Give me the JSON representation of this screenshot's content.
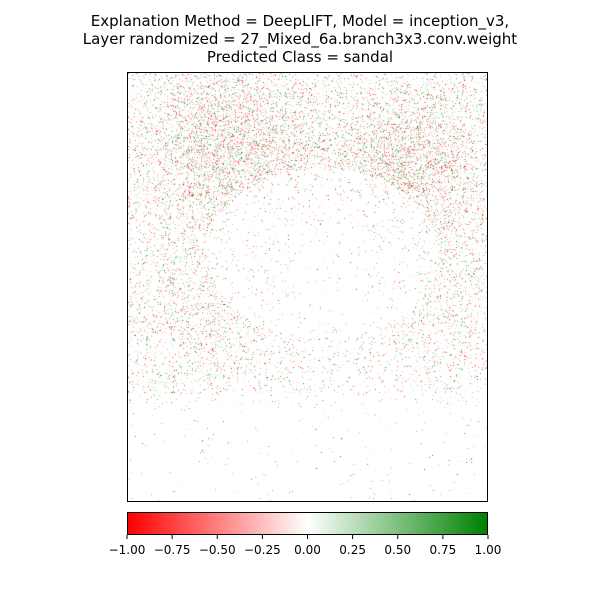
{
  "title": {
    "line1": "Explanation Method = DeepLIFT, Model = inception_v3,",
    "line2": "Layer randomized = 27_Mixed_6a.branch3x3.conv.weight",
    "line3": "Predicted Class = sandal"
  },
  "chart_data": {
    "type": "heatmap",
    "content": "attribution map of a bird image",
    "colormap": [
      "#ff0000",
      "#ffffff",
      "#008000"
    ],
    "colorbar": {
      "range": [
        -1.0,
        1.0
      ],
      "ticks": [
        -1.0,
        -0.75,
        -0.5,
        -0.25,
        0.0,
        0.25,
        0.5,
        0.75,
        1.0
      ],
      "tick_labels": [
        "−1.00",
        "−0.75",
        "−0.50",
        "−0.25",
        "0.00",
        "0.25",
        "0.50",
        "0.75",
        "1.00"
      ],
      "orientation": "horizontal",
      "placement": "bottom"
    },
    "axes_ticks": "none"
  }
}
